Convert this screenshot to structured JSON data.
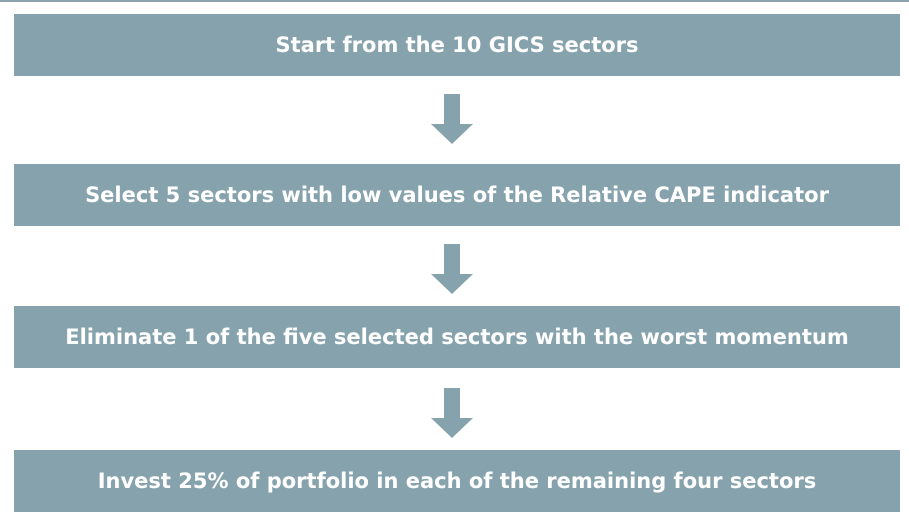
{
  "nodes": [
    {
      "label": "Start from the 10 GICS sectors"
    },
    {
      "label": "Select 5 sectors with low values of the Relative CAPE indicator"
    },
    {
      "label": "Eliminate 1 of the five selected sectors with the worst momentum"
    },
    {
      "label": "Invest 25% of portfolio in each of the remaining four sectors"
    }
  ]
}
